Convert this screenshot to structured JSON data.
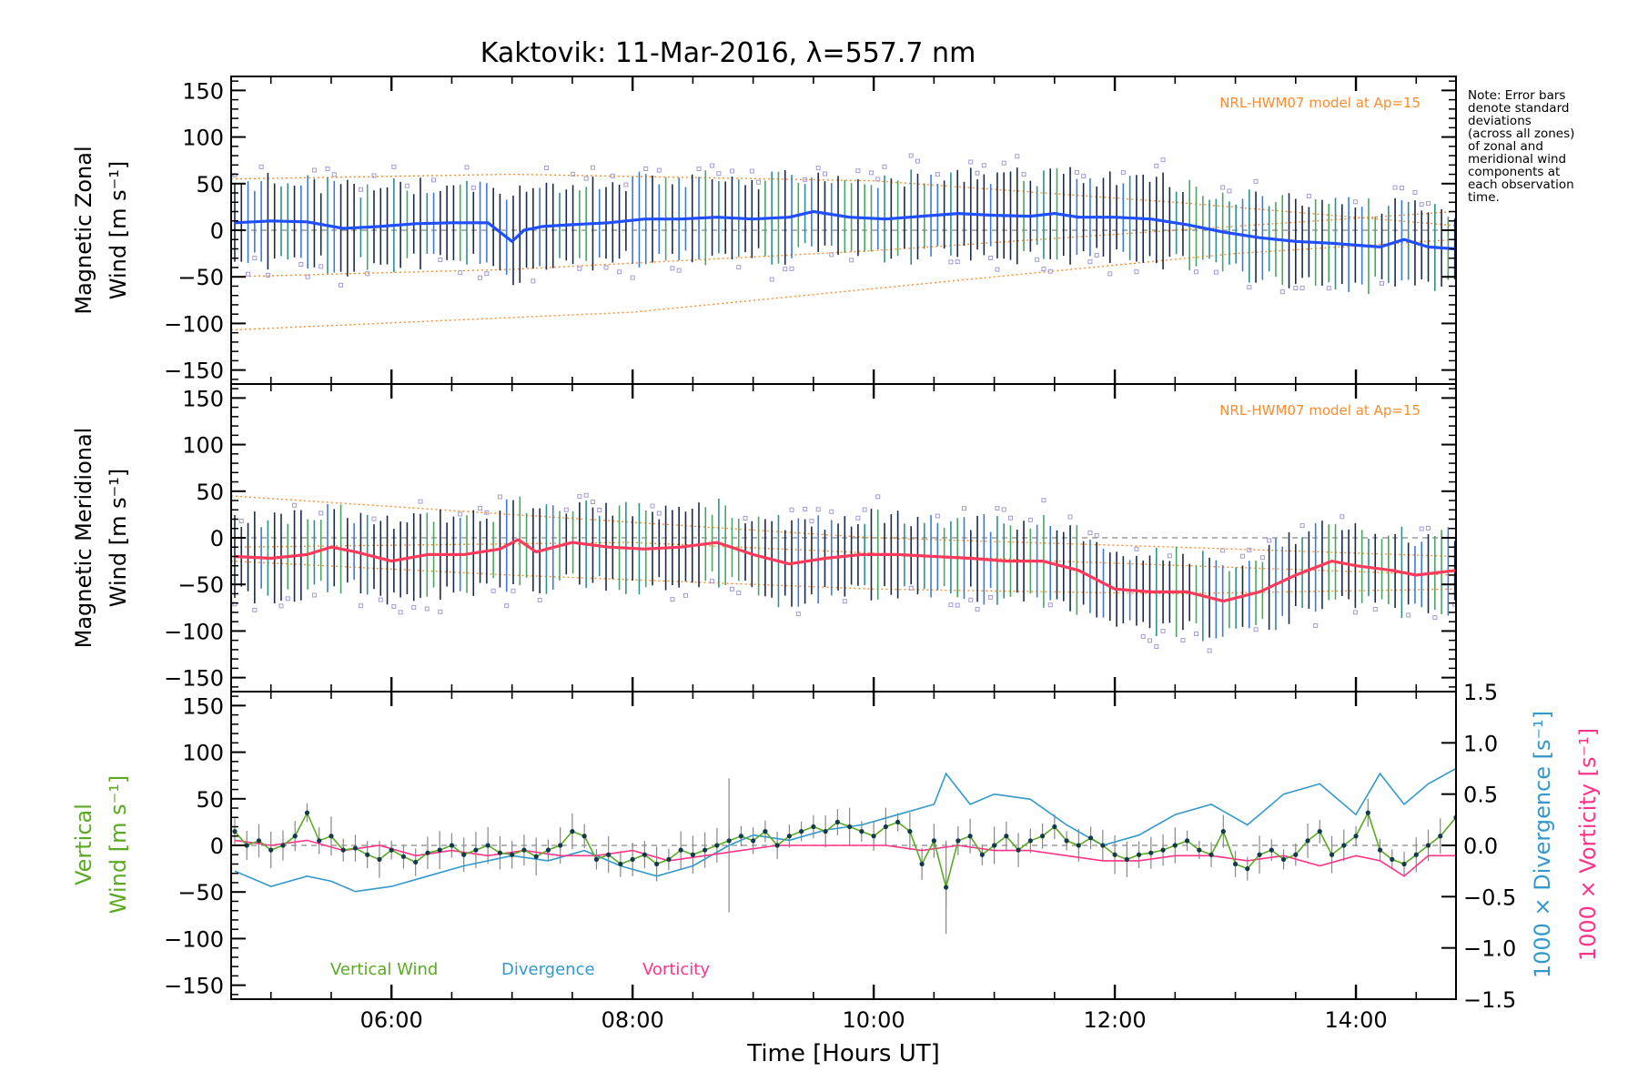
{
  "title": "Kaktovik: 11-Mar-2016, λ=557.7 nm",
  "note_lines": [
    "Note: Error bars",
    "denote standard",
    "deviations",
    "(across all zones)",
    "of zonal and",
    "meridional wind",
    "components at",
    "each observation",
    "time."
  ],
  "xlabel": "Time [Hours UT]",
  "x_ticks": [
    "06:00",
    "08:00",
    "10:00",
    "12:00",
    "14:00"
  ],
  "colors": {
    "zonal": "#1f4fff",
    "meridional": "#ff3a5a",
    "model": "#ff8c2a",
    "samples": "#a39ad8",
    "vertical": "#5aaa22",
    "divergence": "#3399cc",
    "vorticity": "#ff3388",
    "errorbar": "#1a2a4a"
  },
  "chart_data": [
    {
      "type": "line",
      "panel": "zonal",
      "ylabel": [
        "Magnetic Zonal",
        "Wind [m s⁻¹]"
      ],
      "model_label": "NRL-HWM07 model at Ap=15",
      "xlim": [
        4.67,
        14.83
      ],
      "ylim": [
        -165,
        165
      ],
      "yticks": [
        "150",
        "100",
        "50",
        "0",
        "−50",
        "−100",
        "−150"
      ],
      "series": [
        {
          "x": [
            4.7,
            5.0,
            5.3,
            5.6,
            5.9,
            6.2,
            6.5,
            6.8,
            7.0,
            7.1,
            7.25,
            7.5,
            7.8,
            8.1,
            8.4,
            8.7,
            9.0,
            9.3,
            9.5,
            9.8,
            10.1,
            10.4,
            10.7,
            11.0,
            11.3,
            11.5,
            11.7,
            12.0,
            12.3,
            12.6,
            12.9,
            13.2,
            13.5,
            13.8,
            14.0,
            14.2,
            14.4,
            14.6,
            14.83
          ],
          "y": [
            8,
            10,
            9,
            2,
            4,
            7,
            8,
            8,
            -12,
            0,
            4,
            6,
            8,
            12,
            12,
            14,
            12,
            14,
            20,
            14,
            12,
            15,
            18,
            16,
            15,
            18,
            14,
            14,
            12,
            6,
            -2,
            -8,
            -12,
            -14,
            -16,
            -18,
            -10,
            -18,
            -20
          ]
        }
      ],
      "model_lines": [
        {
          "x": [
            4.67,
            7.0,
            10.0,
            12.5,
            14.83
          ],
          "y": [
            55,
            60,
            53,
            30,
            5
          ]
        },
        {
          "x": [
            4.67,
            7.0,
            10.0,
            12.5,
            14.83
          ],
          "y": [
            -50,
            -42,
            -22,
            0,
            20
          ]
        },
        {
          "x": [
            4.67,
            8.0,
            11.0,
            13.0,
            14.83
          ],
          "y": [
            -107,
            -88,
            -50,
            -25,
            -10
          ]
        }
      ],
      "errorbar_half_width": 42
    },
    {
      "type": "line",
      "panel": "meridional",
      "ylabel": [
        "Magnetic Meridional",
        "Wind [m s⁻¹]"
      ],
      "model_label": "NRL-HWM07 model at Ap=15",
      "xlim": [
        4.67,
        14.83
      ],
      "ylim": [
        -165,
        165
      ],
      "yticks": [
        "150",
        "100",
        "50",
        "0",
        "−50",
        "−100",
        "−150"
      ],
      "series": [
        {
          "x": [
            4.7,
            5.0,
            5.3,
            5.5,
            5.7,
            6.0,
            6.3,
            6.6,
            6.9,
            7.05,
            7.2,
            7.5,
            7.8,
            8.1,
            8.4,
            8.7,
            9.0,
            9.3,
            9.6,
            9.9,
            10.2,
            10.5,
            10.8,
            11.1,
            11.4,
            11.7,
            12.0,
            12.3,
            12.6,
            12.9,
            13.2,
            13.5,
            13.8,
            14.0,
            14.3,
            14.5,
            14.83
          ],
          "y": [
            -20,
            -22,
            -18,
            -10,
            -15,
            -25,
            -18,
            -18,
            -12,
            -2,
            -15,
            -5,
            -10,
            -12,
            -10,
            -5,
            -18,
            -28,
            -22,
            -18,
            -18,
            -20,
            -22,
            -25,
            -25,
            -35,
            -55,
            -58,
            -58,
            -68,
            -58,
            -40,
            -25,
            -30,
            -35,
            -40,
            -35
          ]
        }
      ],
      "model_lines": [
        {
          "x": [
            4.67,
            7.0,
            10.0,
            12.5,
            14.83
          ],
          "y": [
            45,
            25,
            0,
            -10,
            -20
          ]
        },
        {
          "x": [
            4.67,
            7.0,
            10.0,
            12.5,
            14.83
          ],
          "y": [
            -25,
            -40,
            -55,
            -60,
            -55
          ]
        },
        {
          "x": [
            4.67,
            8.0,
            11.5,
            14.83
          ],
          "y": [
            -10,
            -5,
            -25,
            -40
          ]
        }
      ],
      "errorbar_half_width": 40
    },
    {
      "type": "line",
      "panel": "vertical",
      "ylabel_left": [
        "Vertical",
        "Wind [m s⁻¹]"
      ],
      "ylabel_right_1": "1000 × Divergence [s⁻¹]",
      "ylabel_right_2": "1000 × Vorticity [s⁻¹]",
      "xlim": [
        4.67,
        14.83
      ],
      "ylim": [
        -165,
        165
      ],
      "yticks": [
        "150",
        "100",
        "50",
        "0",
        "−50",
        "−100",
        "−150"
      ],
      "y2lim": [
        -1.5,
        1.5
      ],
      "y2ticks": [
        "1.5",
        "1.0",
        "0.5",
        "0.0",
        "−0.5",
        "−1.0",
        "−1.5"
      ],
      "legend": [
        {
          "label": "Vertical Wind"
        },
        {
          "label": "Divergence"
        },
        {
          "label": "Vorticity"
        }
      ],
      "series": [
        {
          "name": "Vertical Wind",
          "x": [
            4.7,
            4.8,
            4.9,
            5.0,
            5.1,
            5.2,
            5.3,
            5.4,
            5.5,
            5.6,
            5.7,
            5.8,
            5.9,
            6.0,
            6.1,
            6.2,
            6.3,
            6.4,
            6.5,
            6.6,
            6.7,
            6.8,
            6.9,
            7.0,
            7.1,
            7.2,
            7.3,
            7.4,
            7.5,
            7.6,
            7.7,
            7.8,
            7.9,
            8.0,
            8.1,
            8.2,
            8.3,
            8.4,
            8.5,
            8.6,
            8.7,
            8.8,
            8.9,
            9.0,
            9.1,
            9.2,
            9.3,
            9.4,
            9.5,
            9.6,
            9.7,
            9.8,
            9.9,
            10.0,
            10.1,
            10.2,
            10.3,
            10.4,
            10.5,
            10.6,
            10.7,
            10.8,
            10.9,
            11.0,
            11.1,
            11.2,
            11.3,
            11.4,
            11.5,
            11.6,
            11.7,
            11.8,
            11.9,
            12.0,
            12.1,
            12.2,
            12.3,
            12.4,
            12.5,
            12.6,
            12.7,
            12.8,
            12.9,
            13.0,
            13.1,
            13.2,
            13.3,
            13.4,
            13.5,
            13.6,
            13.7,
            13.8,
            13.9,
            14.0,
            14.1,
            14.2,
            14.3,
            14.4,
            14.5,
            14.6,
            14.7,
            14.83
          ],
          "y": [
            15,
            0,
            5,
            -5,
            0,
            10,
            35,
            5,
            10,
            -5,
            -3,
            -10,
            -15,
            -5,
            -12,
            -18,
            -8,
            -5,
            0,
            -10,
            -5,
            0,
            -8,
            -10,
            -5,
            -12,
            -5,
            0,
            15,
            10,
            -15,
            -10,
            -20,
            -15,
            -10,
            -20,
            -15,
            -5,
            -10,
            -5,
            0,
            5,
            10,
            5,
            15,
            0,
            10,
            15,
            20,
            15,
            25,
            20,
            15,
            10,
            20,
            25,
            15,
            -20,
            5,
            -45,
            5,
            10,
            -10,
            0,
            10,
            -5,
            5,
            10,
            20,
            5,
            0,
            8,
            0,
            -10,
            -15,
            -10,
            -8,
            -5,
            0,
            5,
            -5,
            -10,
            15,
            -20,
            -25,
            -10,
            -5,
            -15,
            -10,
            5,
            15,
            -10,
            0,
            10,
            35,
            -5,
            -15,
            -20,
            -10,
            0,
            10,
            30
          ]
        },
        {
          "name": "Divergence",
          "axis": "right",
          "x": [
            4.7,
            5.0,
            5.3,
            5.5,
            5.7,
            6.0,
            6.3,
            6.6,
            7.0,
            7.3,
            7.6,
            7.9,
            8.2,
            8.5,
            8.8,
            9.0,
            9.3,
            9.6,
            9.9,
            10.2,
            10.5,
            10.6,
            10.8,
            11.0,
            11.3,
            11.6,
            11.9,
            12.2,
            12.5,
            12.8,
            13.1,
            13.4,
            13.7,
            14.0,
            14.2,
            14.4,
            14.6,
            14.83
          ],
          "y": [
            -0.25,
            -0.4,
            -0.3,
            -0.35,
            -0.45,
            -0.4,
            -0.3,
            -0.2,
            -0.1,
            -0.15,
            -0.05,
            -0.2,
            -0.3,
            -0.2,
            0.0,
            0.1,
            0.05,
            0.15,
            0.2,
            0.3,
            0.4,
            0.7,
            0.4,
            0.5,
            0.45,
            0.2,
            0.0,
            0.1,
            0.3,
            0.4,
            0.2,
            0.5,
            0.6,
            0.3,
            0.7,
            0.4,
            0.6,
            0.75
          ]
        },
        {
          "name": "Vorticity",
          "axis": "right",
          "x": [
            4.7,
            5.0,
            5.3,
            5.6,
            5.9,
            6.2,
            6.5,
            6.8,
            7.1,
            7.4,
            7.7,
            8.0,
            8.3,
            8.6,
            8.9,
            9.2,
            9.5,
            9.8,
            10.1,
            10.4,
            10.7,
            11.0,
            11.3,
            11.6,
            11.9,
            12.2,
            12.5,
            12.8,
            13.1,
            13.4,
            13.7,
            14.0,
            14.2,
            14.4,
            14.6,
            14.83
          ],
          "y": [
            0.05,
            0.0,
            0.05,
            -0.05,
            0.0,
            -0.1,
            -0.05,
            -0.1,
            -0.05,
            -0.1,
            -0.1,
            -0.05,
            -0.15,
            -0.1,
            -0.05,
            0.0,
            0.0,
            0.0,
            0.0,
            -0.05,
            0.0,
            -0.05,
            -0.05,
            -0.1,
            -0.15,
            -0.15,
            -0.1,
            -0.1,
            -0.15,
            -0.1,
            -0.2,
            -0.1,
            -0.15,
            -0.3,
            -0.1,
            -0.1
          ]
        }
      ],
      "errorbar_half_width": 14
    }
  ]
}
